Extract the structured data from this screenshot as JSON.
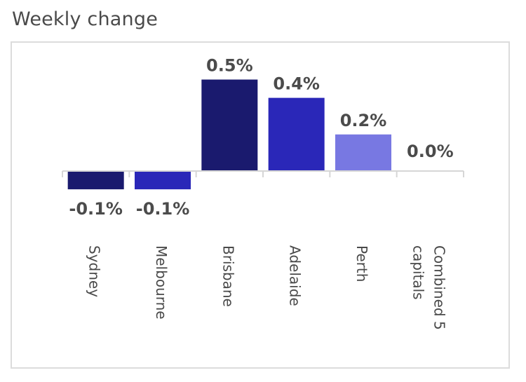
{
  "title": "Weekly change",
  "chart_data": {
    "type": "bar",
    "title": "Weekly change",
    "xlabel": "",
    "ylabel": "",
    "categories": [
      "Sydney",
      "Melbourne",
      "Brisbane",
      "Adelaide",
      "Perth",
      "Combined 5 capitals"
    ],
    "category_lines": [
      [
        "Sydney"
      ],
      [
        "Melbourne"
      ],
      [
        "Brisbane"
      ],
      [
        "Adelaide"
      ],
      [
        "Perth"
      ],
      [
        "Combined 5",
        "capitals"
      ]
    ],
    "values": [
      -0.1,
      -0.1,
      0.5,
      0.4,
      0.2,
      0.0
    ],
    "value_labels": [
      "-0.1%",
      "-0.1%",
      "0.5%",
      "0.4%",
      "0.2%",
      "0.0%"
    ],
    "bar_colors": [
      "#1a1a6e",
      "#2a27b8",
      "#1a1a6e",
      "#2a27b8",
      "#7878e2",
      "#7878e2"
    ],
    "value_unit": "%",
    "ylim": [
      -0.1,
      0.5
    ],
    "grid": false,
    "legend": "none"
  }
}
